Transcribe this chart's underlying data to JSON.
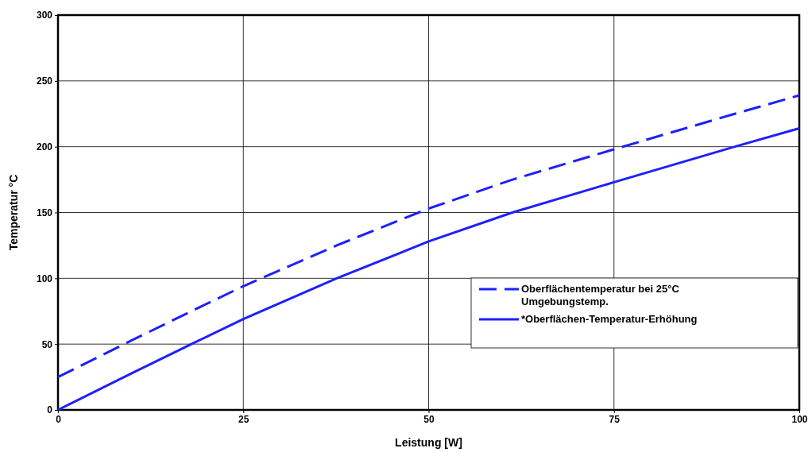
{
  "chart_data": {
    "type": "line",
    "xlabel": "Leistung  [W]",
    "ylabel": "Temperatur °C",
    "x": [
      0,
      10,
      18,
      25,
      37.6,
      50,
      61.3,
      75,
      91.3,
      100
    ],
    "xlim": [
      0,
      100
    ],
    "xticks": [
      0,
      25,
      50,
      75,
      100
    ],
    "ylim": [
      0,
      300
    ],
    "yticks": [
      0,
      50,
      100,
      150,
      200,
      250,
      300
    ],
    "grid": true,
    "legend": "right",
    "marker": "none",
    "series": [
      {
        "name": "Oberflächentemperatur bei 25°C Umgebungstemp.",
        "color": "#1f1fff",
        "line_style": "dashed",
        "values": [
          25,
          53,
          75,
          94,
          125,
          153,
          175,
          198,
          225,
          239
        ]
      },
      {
        "name": "*Oberflächen-Temperatur-Erhöhung",
        "color": "#1f1fff",
        "line_style": "solid",
        "values": [
          0,
          28,
          50,
          69,
          100,
          128,
          150,
          173,
          200,
          214
        ]
      }
    ]
  }
}
